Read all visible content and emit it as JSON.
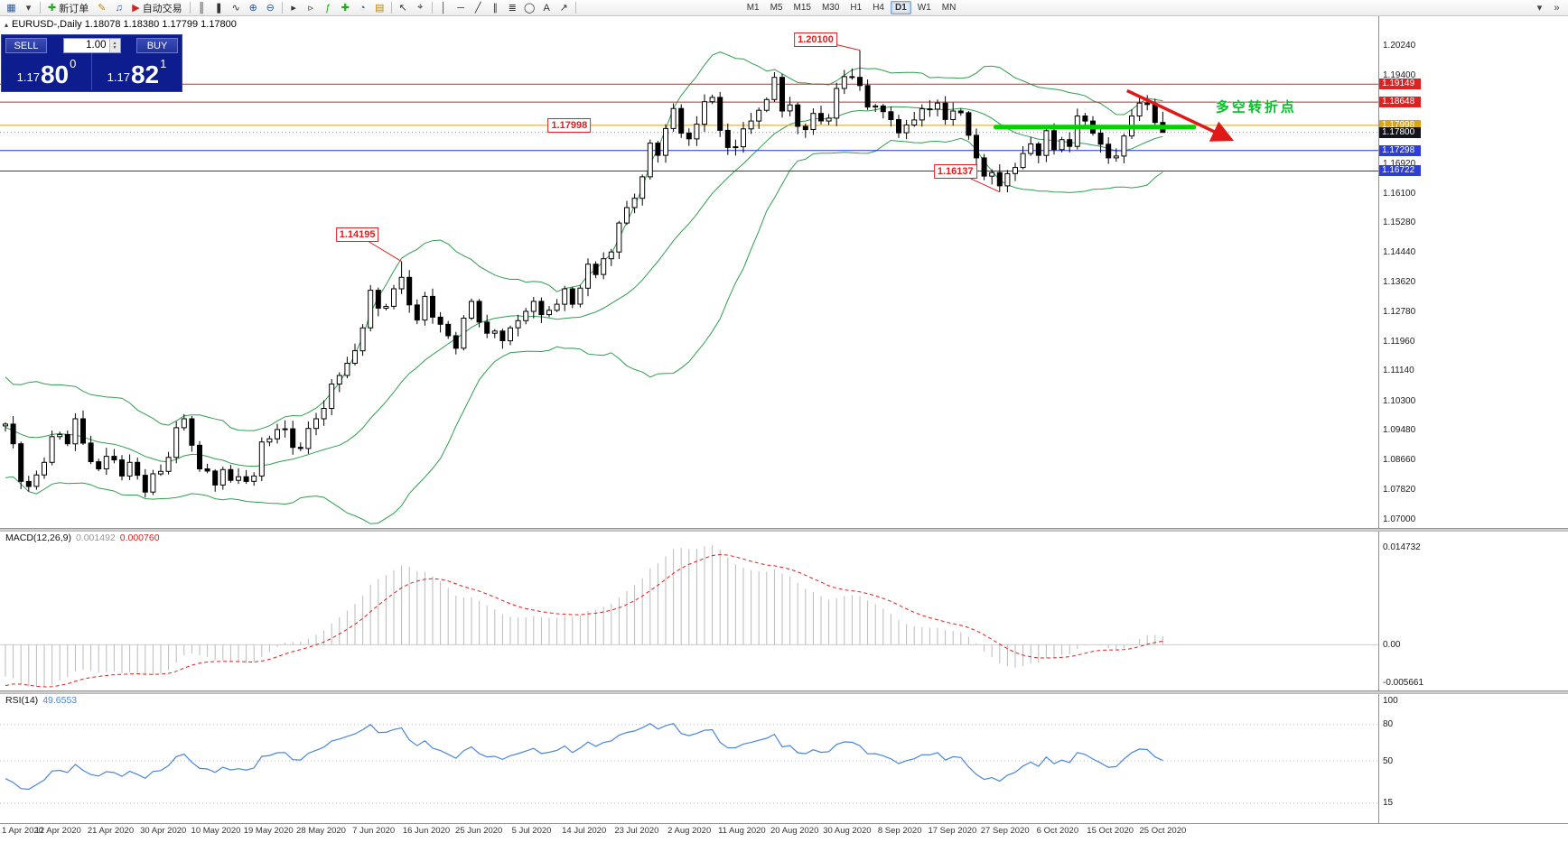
{
  "window": {
    "title_line": "EURUSD-,Daily 1.18078 1.18380 1.17799 1.17800"
  },
  "toolbar": {
    "items": [
      {
        "type": "icon",
        "name": "new-chart-icon",
        "glyph": "▦",
        "color": "#2b579a"
      },
      {
        "type": "icon",
        "name": "profiles-icon",
        "glyph": "▾",
        "color": "#444444"
      },
      {
        "type": "sep"
      },
      {
        "type": "button",
        "name": "new-order-button",
        "glyph": "✚",
        "glyph_color": "#1faa1f",
        "label": "新订单"
      },
      {
        "type": "icon",
        "name": "metaeditor-icon",
        "glyph": "✎",
        "color": "#b8860b"
      },
      {
        "type": "icon",
        "name": "alerts-icon",
        "glyph": "♫",
        "color": "#2b579a"
      },
      {
        "type": "button",
        "name": "autotrading-button",
        "glyph": "▶",
        "glyph_color": "#d42222",
        "label": "自动交易"
      },
      {
        "type": "sep"
      },
      {
        "type": "icon",
        "name": "bar-chart-icon",
        "glyph": "║",
        "color": "#333333"
      },
      {
        "type": "icon",
        "name": "candlestick-chart-icon",
        "glyph": "❚",
        "color": "#333333"
      },
      {
        "type": "icon",
        "name": "line-chart-icon",
        "glyph": "∿",
        "color": "#333333"
      },
      {
        "type": "icon",
        "name": "zoom-in-icon",
        "glyph": "⊕",
        "color": "#2b579a"
      },
      {
        "type": "icon",
        "name": "zoom-out-icon",
        "glyph": "⊖",
        "color": "#2b579a"
      },
      {
        "type": "sep"
      },
      {
        "type": "icon",
        "name": "auto-scroll-icon",
        "glyph": "▸",
        "color": "#333333"
      },
      {
        "type": "icon",
        "name": "chart-shift-icon",
        "glyph": "▹",
        "color": "#333333"
      },
      {
        "type": "icon",
        "name": "indicators-icon",
        "glyph": "ƒ",
        "color": "#1faa1f"
      },
      {
        "type": "icon",
        "name": "add-indicator-icon",
        "glyph": "✚",
        "color": "#1faa1f"
      },
      {
        "type": "icon",
        "name": "periods-icon",
        "glyph": "◔",
        "color": "#2b579a"
      },
      {
        "type": "icon",
        "name": "templates-icon",
        "glyph": "▤",
        "color": "#b8860b"
      },
      {
        "type": "sep"
      },
      {
        "type": "icon",
        "name": "cursor-icon",
        "glyph": "↖",
        "color": "#333333"
      },
      {
        "type": "icon",
        "name": "crosshair-icon",
        "glyph": "⌖",
        "color": "#333333"
      },
      {
        "type": "sep"
      },
      {
        "type": "icon",
        "name": "vertical-line-icon",
        "glyph": "│",
        "color": "#333333"
      },
      {
        "type": "icon",
        "name": "horizontal-line-icon",
        "glyph": "─",
        "color": "#333333"
      },
      {
        "type": "icon",
        "name": "trendline-icon",
        "glyph": "╱",
        "color": "#333333"
      },
      {
        "type": "icon",
        "name": "channel-icon",
        "glyph": "∥",
        "color": "#333333"
      },
      {
        "type": "icon",
        "name": "fibonacci-icon",
        "glyph": "≣",
        "color": "#333333"
      },
      {
        "type": "icon",
        "name": "shapes-icon",
        "glyph": "◯",
        "color": "#333333"
      },
      {
        "type": "icon",
        "name": "text-icon",
        "glyph": "A",
        "color": "#333333"
      },
      {
        "type": "icon",
        "name": "arrows-icon",
        "glyph": "↗",
        "color": "#333333"
      },
      {
        "type": "sep"
      }
    ],
    "timeframes": [
      {
        "label": "M1"
      },
      {
        "label": "M5"
      },
      {
        "label": "M15"
      },
      {
        "label": "M30"
      },
      {
        "label": "H1"
      },
      {
        "label": "H4"
      },
      {
        "label": "D1",
        "active": true
      },
      {
        "label": "W1"
      },
      {
        "label": "MN"
      }
    ],
    "right_icons": [
      {
        "name": "toolbar-customize-icon",
        "glyph": "▾"
      },
      {
        "name": "toolbar-expand-icon",
        "glyph": "»"
      }
    ]
  },
  "trade_panel": {
    "sell_label": "SELL",
    "buy_label": "BUY",
    "volume": "1.00",
    "sell_price": {
      "small": "1.17",
      "big": "80",
      "sup": "0"
    },
    "buy_price": {
      "small": "1.17",
      "big": "82",
      "sup": "1"
    }
  },
  "chart_data": {
    "type": "candlestick",
    "symbol_title": "EURUSD-,Daily",
    "ohlc_display": [
      "1.18078",
      "1.18380",
      "1.17799",
      "1.17800"
    ],
    "ylim": [
      1.07,
      1.2024
    ],
    "price_axis_labels": [
      {
        "text": "1.20240",
        "price": 1.2024,
        "style": "normal"
      },
      {
        "text": "1.19400",
        "price": 1.194,
        "style": "normal"
      },
      {
        "text": "1.19149",
        "price": 1.19149,
        "style": "red"
      },
      {
        "text": "1.18648",
        "price": 1.18648,
        "style": "red"
      },
      {
        "text": "1.17998",
        "price": 1.17998,
        "style": "orange"
      },
      {
        "text": "1.17800",
        "price": 1.178,
        "style": "current"
      },
      {
        "text": "1.17298",
        "price": 1.17298,
        "style": "blue"
      },
      {
        "text": "1.16920",
        "price": 1.1692,
        "style": "normal"
      },
      {
        "text": "1.16722",
        "price": 1.16722,
        "style": "blue"
      },
      {
        "text": "1.16100",
        "price": 1.161,
        "style": "normal"
      },
      {
        "text": "1.15280",
        "price": 1.1528,
        "style": "normal"
      },
      {
        "text": "1.14440",
        "price": 1.1444,
        "style": "normal"
      },
      {
        "text": "1.13620",
        "price": 1.1362,
        "style": "normal"
      },
      {
        "text": "1.12780",
        "price": 1.1278,
        "style": "normal"
      },
      {
        "text": "1.11960",
        "price": 1.1196,
        "style": "normal"
      },
      {
        "text": "1.11140",
        "price": 1.1114,
        "style": "normal"
      },
      {
        "text": "1.10300",
        "price": 1.103,
        "style": "normal"
      },
      {
        "text": "1.09480",
        "price": 1.0948,
        "style": "normal"
      },
      {
        "text": "1.08660",
        "price": 1.0866,
        "style": "normal"
      },
      {
        "text": "1.07820",
        "price": 1.0782,
        "style": "normal"
      },
      {
        "text": "1.07000",
        "price": 1.07,
        "style": "normal"
      }
    ],
    "hlines": [
      {
        "price": 1.19149,
        "color": "#dd2222"
      },
      {
        "price": 1.18648,
        "color": "#dd2222"
      },
      {
        "price": 1.17998,
        "color": "#d8a419"
      },
      {
        "price": 1.17298,
        "color": "#2233cc"
      },
      {
        "price": 1.16722,
        "color": "#2233cc"
      }
    ],
    "bid_line": {
      "price": 1.178,
      "color": "#888888"
    },
    "x_labels": [
      "1 Apr 2020",
      "12 Apr 2020",
      "21 Apr 2020",
      "30 Apr 2020",
      "10 May 2020",
      "19 May 2020",
      "28 May 2020",
      "7 Jun 2020",
      "16 Jun 2020",
      "25 Jun 2020",
      "5 Jul 2020",
      "14 Jul 2020",
      "23 Jul 2020",
      "2 Aug 2020",
      "11 Aug 2020",
      "20 Aug 2020",
      "30 Aug 2020",
      "8 Sep 2020",
      "17 Sep 2020",
      "27 Sep 2020",
      "6 Oct 2020",
      "15 Oct 2020",
      "25 Oct 2020"
    ],
    "pre_closes": [
      1.128,
      1.12,
      1.113,
      1.108,
      1.102,
      1.094,
      1.086,
      1.079,
      1.082,
      1.089,
      1.096,
      1.1,
      1.103,
      1.101,
      1.0965,
      1.0948,
      1.092,
      1.0946,
      1.1,
      1.102,
      1.099,
      1.096
    ],
    "closes": [
      1.0965,
      1.091,
      1.0805,
      1.0791,
      1.0823,
      1.0858,
      1.093,
      1.0936,
      1.091,
      1.098,
      1.0912,
      1.086,
      1.084,
      1.0875,
      1.0865,
      1.082,
      1.0858,
      1.0822,
      1.0775,
      1.0826,
      1.0833,
      1.0872,
      1.0955,
      1.098,
      1.0906,
      1.084,
      1.0834,
      1.0795,
      1.0838,
      1.0808,
      1.0818,
      1.0805,
      1.082,
      1.0915,
      1.0924,
      1.095,
      1.0952,
      1.09,
      1.0897,
      1.0953,
      1.098,
      1.1009,
      1.1077,
      1.1101,
      1.1135,
      1.117,
      1.1234,
      1.1339,
      1.1289,
      1.1294,
      1.1343,
      1.1375,
      1.1298,
      1.1256,
      1.1322,
      1.1264,
      1.1244,
      1.1212,
      1.1177,
      1.1261,
      1.1308,
      1.125,
      1.1219,
      1.1225,
      1.1198,
      1.1234,
      1.1254,
      1.128,
      1.1308,
      1.1271,
      1.1283,
      1.13,
      1.1343,
      1.13,
      1.1345,
      1.1412,
      1.1383,
      1.1427,
      1.1446,
      1.1527,
      1.157,
      1.1596,
      1.1656,
      1.175,
      1.1716,
      1.1791,
      1.1847,
      1.1778,
      1.1762,
      1.1803,
      1.1866,
      1.1878,
      1.1786,
      1.1738,
      1.174,
      1.179,
      1.1812,
      1.1842,
      1.1872,
      1.1934,
      1.184,
      1.1857,
      1.1797,
      1.1788,
      1.1833,
      1.1812,
      1.182,
      1.1903,
      1.1936,
      1.1934,
      1.1911,
      1.1851,
      1.1854,
      1.1838,
      1.1816,
      1.1779,
      1.1801,
      1.1815,
      1.1846,
      1.1845,
      1.1862,
      1.1816,
      1.184,
      1.1835,
      1.1772,
      1.1709,
      1.1658,
      1.1668,
      1.1631,
      1.1665,
      1.1682,
      1.1721,
      1.1748,
      1.1716,
      1.1785,
      1.1732,
      1.176,
      1.1741,
      1.1826,
      1.1812,
      1.1778,
      1.1747,
      1.1709,
      1.1714,
      1.177,
      1.1826,
      1.1862,
      1.1858,
      1.18078,
      1.178
    ],
    "wick_overrides": {
      "51": {
        "high": 1.14195
      },
      "110": {
        "high": 1.201
      },
      "128": {
        "low": 1.16137
      },
      "149": {
        "high": 1.1838,
        "low": 1.17799
      }
    },
    "bollinger": {
      "period": 20,
      "deviation": 2,
      "color": "#2f9e4f"
    },
    "annotations": {
      "callouts": [
        {
          "text": "1.20100",
          "box_index": 104.3,
          "box_price": 1.2039,
          "target_index": 110,
          "target_price": 1.201
        },
        {
          "text": "1.16137",
          "box_index": 122.3,
          "box_price": 1.16708,
          "target_index": 128,
          "target_price": 1.16137
        },
        {
          "text": "1.14195",
          "box_index": 45.3,
          "box_price": 1.14943,
          "target_index": 51,
          "target_price": 1.14195
        },
        {
          "text": "1.17998",
          "box_index": 72.6,
          "box_price": 1.17998
        }
      ],
      "support_line": {
        "price": 1.1795,
        "from_index": 127.5,
        "to_index": 153,
        "color": "#00d400",
        "width": 5
      },
      "arrow": {
        "from_index": 144.4,
        "from_price": 1.1897,
        "to_index": 157.6,
        "to_price": 1.1762,
        "color": "#e01818",
        "width": 3.5
      },
      "pivot_text": {
        "text": "多空转折点",
        "index": 155.8,
        "price": 1.1853,
        "color": "#00c222"
      }
    },
    "macd": {
      "label": "MACD(12,26,9)",
      "value_main": "0.001492",
      "value_signal": "0.000760",
      "fast": 12,
      "slow": 26,
      "signal": 9,
      "axis_top": {
        "text": "0.014732",
        "value": 0.014732
      },
      "axis_zero": {
        "text": "0.00",
        "value": 0
      },
      "axis_bottom": {
        "text": "-0.005661",
        "value": -0.005661
      },
      "hist_color": "#bbbbbb",
      "signal_color": "#dd2222"
    },
    "rsi": {
      "label": "RSI(14)",
      "value": "49.6553",
      "period": 14,
      "axis_labels": [
        {
          "text": "100",
          "value": 100
        },
        {
          "text": "80",
          "value": 80
        },
        {
          "text": "50",
          "value": 50
        },
        {
          "text": "15",
          "value": 15
        }
      ],
      "levels": [
        80,
        50,
        15
      ],
      "color": "#4a86d8"
    }
  }
}
